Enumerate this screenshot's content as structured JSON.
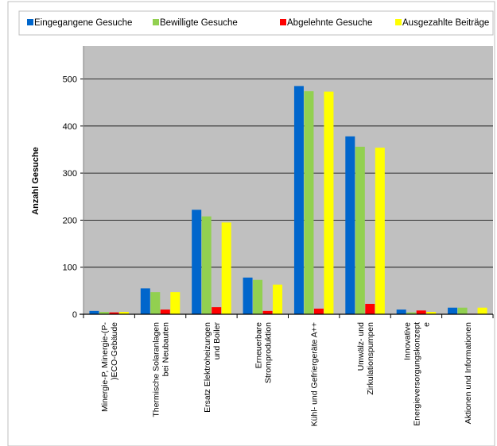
{
  "chart_data": {
    "type": "bar",
    "title": "",
    "xlabel": "",
    "ylabel": "Anzahl Gesuche",
    "ylim": [
      0,
      570
    ],
    "yticks": [
      0,
      100,
      200,
      300,
      400,
      500
    ],
    "grid": true,
    "legend_position": "top",
    "plot_background": "#c0c0c0",
    "categories": [
      [
        "Minergie-P, Minergie-(P-",
        ")ECO-Gebäude"
      ],
      [
        "Thermische Solaranlagen",
        "bei Neubauten"
      ],
      [
        "Ersatz Elektroheizungen",
        "und Boiler"
      ],
      [
        "Erneuerbare",
        "Stromproduktion"
      ],
      [
        "Kühl- und Gefriergeräte A++"
      ],
      [
        "Umwälz- und",
        "Zirkulationspumpen"
      ],
      [
        "Innovative",
        "Energieversorgungskonzept",
        "e"
      ],
      [
        "Aktionen und Informationen"
      ]
    ],
    "series": [
      {
        "name": "Eingegangene Gesuche",
        "color": "#0066cc",
        "values": [
          7,
          55,
          222,
          78,
          485,
          378,
          10,
          14
        ]
      },
      {
        "name": "Bewilligte Gesuche",
        "color": "#92d050",
        "values": [
          5,
          47,
          208,
          73,
          474,
          356,
          4,
          14
        ]
      },
      {
        "name": "Abgelehnte Gesuche",
        "color": "#ff0000",
        "values": [
          4,
          10,
          15,
          7,
          12,
          22,
          8,
          1
        ]
      },
      {
        "name": "Ausgezahlte Beiträge",
        "color": "#ffff00",
        "values": [
          5,
          47,
          195,
          63,
          473,
          354,
          5,
          14
        ]
      }
    ]
  }
}
